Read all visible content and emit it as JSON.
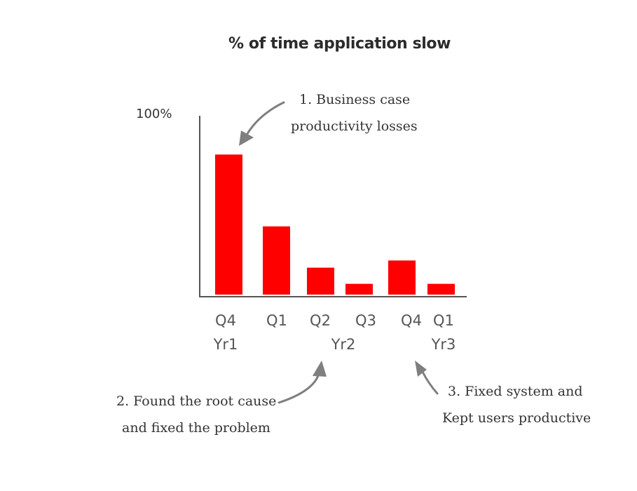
{
  "chart_data": {
    "type": "bar",
    "title": "% of time application slow",
    "ytop_label": "100%",
    "categories": [
      "Q4",
      "Q1",
      "Q2",
      "Q3",
      "Q4",
      "Q1"
    ],
    "year_labels": [
      "Yr1",
      "Yr2",
      "Yr3"
    ],
    "values": [
      78,
      38,
      15,
      6,
      19,
      6
    ],
    "ylim": [
      0,
      100
    ],
    "grid": false,
    "bar_color": "#ff0000",
    "axis_color": "#555555"
  },
  "annotations": {
    "a1": {
      "line1": "1. Business case",
      "line2": "productivity losses"
    },
    "a2": {
      "line1": "2. Found the root cause",
      "line2": "and fixed the problem"
    },
    "a3": {
      "line1": "3. Fixed system and",
      "line2": "Kept users productive"
    }
  },
  "arrow_color": "#7f7f7f"
}
